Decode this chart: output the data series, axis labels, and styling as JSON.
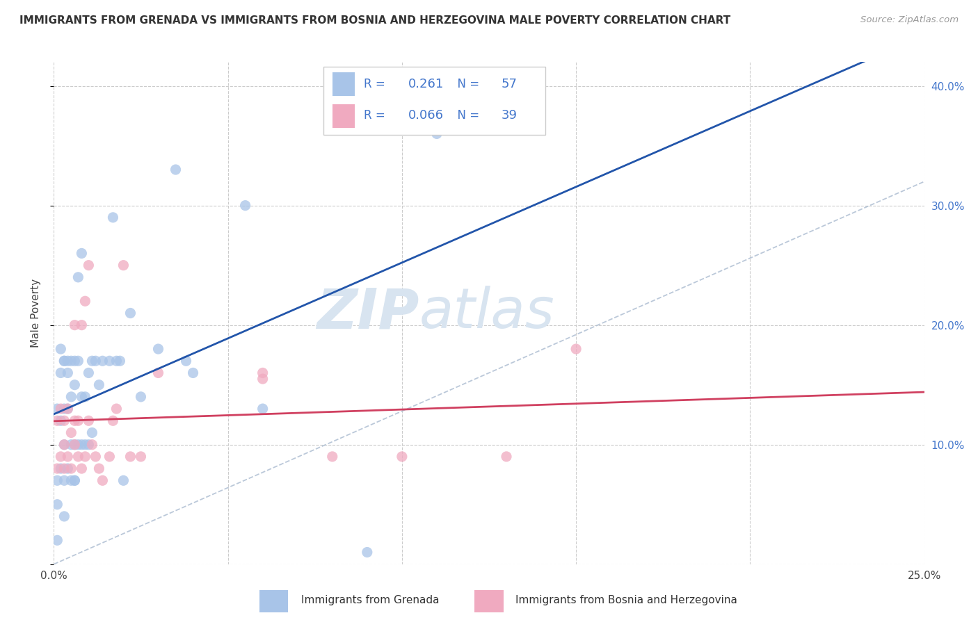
{
  "title": "IMMIGRANTS FROM GRENADA VS IMMIGRANTS FROM BOSNIA AND HERZEGOVINA MALE POVERTY CORRELATION CHART",
  "source": "Source: ZipAtlas.com",
  "ylabel": "Male Poverty",
  "xlim": [
    0.0,
    0.25
  ],
  "ylim": [
    0.0,
    0.42
  ],
  "xticks": [
    0.0,
    0.05,
    0.1,
    0.15,
    0.2,
    0.25
  ],
  "yticks": [
    0.0,
    0.1,
    0.2,
    0.3,
    0.4
  ],
  "background_color": "#ffffff",
  "grid_color": "#cccccc",
  "ref_line_color": "#aabbd0",
  "watermark_zip": "ZIP",
  "watermark_atlas": "atlas",
  "watermark_color": "#d8e4f0",
  "series": [
    {
      "label": "Immigrants from Grenada",
      "R": 0.261,
      "N": 57,
      "dot_color": "#a8c4e8",
      "line_color": "#2255aa",
      "x": [
        0.001,
        0.001,
        0.001,
        0.002,
        0.002,
        0.002,
        0.002,
        0.003,
        0.003,
        0.003,
        0.003,
        0.003,
        0.003,
        0.004,
        0.004,
        0.004,
        0.004,
        0.005,
        0.005,
        0.005,
        0.005,
        0.006,
        0.006,
        0.006,
        0.006,
        0.006,
        0.007,
        0.007,
        0.007,
        0.008,
        0.008,
        0.008,
        0.009,
        0.009,
        0.01,
        0.01,
        0.011,
        0.011,
        0.012,
        0.013,
        0.014,
        0.016,
        0.017,
        0.018,
        0.019,
        0.02,
        0.022,
        0.025,
        0.03,
        0.035,
        0.038,
        0.04,
        0.055,
        0.06,
        0.09,
        0.11,
        0.001
      ],
      "y": [
        0.05,
        0.07,
        0.13,
        0.08,
        0.12,
        0.16,
        0.18,
        0.04,
        0.07,
        0.1,
        0.13,
        0.17,
        0.17,
        0.08,
        0.13,
        0.16,
        0.17,
        0.07,
        0.1,
        0.14,
        0.17,
        0.07,
        0.07,
        0.1,
        0.15,
        0.17,
        0.1,
        0.17,
        0.24,
        0.1,
        0.14,
        0.26,
        0.1,
        0.14,
        0.1,
        0.16,
        0.11,
        0.17,
        0.17,
        0.15,
        0.17,
        0.17,
        0.29,
        0.17,
        0.17,
        0.07,
        0.21,
        0.14,
        0.18,
        0.33,
        0.17,
        0.16,
        0.3,
        0.13,
        0.01,
        0.36,
        0.02
      ]
    },
    {
      "label": "Immigrants from Bosnia and Herzegovina",
      "R": 0.066,
      "N": 39,
      "dot_color": "#f0aac0",
      "line_color": "#d04060",
      "x": [
        0.001,
        0.001,
        0.002,
        0.002,
        0.003,
        0.003,
        0.003,
        0.004,
        0.004,
        0.005,
        0.005,
        0.006,
        0.006,
        0.006,
        0.007,
        0.007,
        0.008,
        0.008,
        0.009,
        0.009,
        0.01,
        0.01,
        0.011,
        0.012,
        0.013,
        0.014,
        0.016,
        0.017,
        0.018,
        0.02,
        0.022,
        0.025,
        0.03,
        0.06,
        0.08,
        0.1,
        0.13,
        0.15,
        0.06
      ],
      "y": [
        0.08,
        0.12,
        0.09,
        0.13,
        0.08,
        0.1,
        0.12,
        0.09,
        0.13,
        0.08,
        0.11,
        0.1,
        0.12,
        0.2,
        0.09,
        0.12,
        0.08,
        0.2,
        0.09,
        0.22,
        0.12,
        0.25,
        0.1,
        0.09,
        0.08,
        0.07,
        0.09,
        0.12,
        0.13,
        0.25,
        0.09,
        0.09,
        0.16,
        0.155,
        0.09,
        0.09,
        0.09,
        0.18,
        0.16
      ]
    }
  ],
  "legend_color": "#4477cc",
  "right_axis_color": "#4477cc",
  "title_fontsize": 11,
  "source_fontsize": 9.5,
  "dot_size": 120,
  "dot_alpha": 0.75
}
